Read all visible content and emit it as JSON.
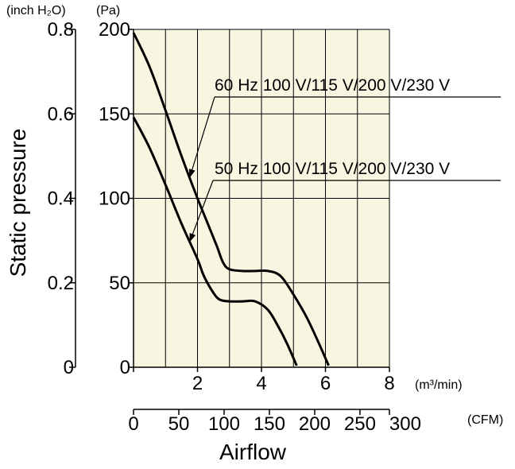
{
  "chart_data": {
    "type": "line",
    "xlabel": "Airflow",
    "ylabel": "Static pressure",
    "x_unit_primary": "(m³/min)",
    "x_unit_secondary": "(CFM)",
    "y_unit_left_outer": "(inch H₂O)",
    "y_unit_left_inner": "(Pa)",
    "xlim": [
      0,
      8
    ],
    "ylim": [
      0,
      200
    ],
    "x_ticks": [
      0,
      2,
      4,
      6,
      8
    ],
    "x_tick_labels": [
      "",
      "2",
      "4",
      "6",
      "8"
    ],
    "y_ticks": [
      0,
      50,
      100,
      150,
      200
    ],
    "y_tick_labels_pa": [
      "0",
      "50",
      "100",
      "150",
      "200"
    ],
    "y_tick_labels_inch": [
      "0",
      "0.2",
      "0.4",
      "0.6",
      "0.8"
    ],
    "cfm_tick_labels": [
      "0",
      "50",
      "100",
      "150",
      "200",
      "250",
      "300"
    ],
    "cfm_ticks": [
      0,
      50,
      100,
      150,
      200,
      250,
      300
    ],
    "grid": true,
    "background": "#f8f5e1",
    "series": [
      {
        "name": "60 Hz 100 V/115 V/200 V/230 V",
        "x": [
          0.0,
          0.5,
          1.0,
          1.5,
          2.0,
          2.3,
          2.6,
          2.8,
          3.0,
          3.4,
          3.8,
          4.2,
          4.6,
          5.0,
          5.4,
          5.8,
          6.1
        ],
        "y": [
          198,
          178,
          152,
          125,
          100,
          86,
          72,
          62,
          58,
          57,
          57,
          57,
          54,
          43,
          30,
          14,
          1
        ]
      },
      {
        "name": "50 Hz 100 V/115 V/200 V/230 V",
        "x": [
          0.0,
          0.5,
          1.0,
          1.5,
          2.0,
          2.2,
          2.5,
          2.7,
          3.0,
          3.4,
          3.8,
          4.2,
          4.5,
          4.8,
          5.1
        ],
        "y": [
          148,
          130,
          108,
          85,
          64,
          54,
          44,
          40,
          39,
          39,
          39,
          34,
          25,
          14,
          1
        ]
      }
    ],
    "annotations": [
      {
        "text": "60 Hz 100 V/115 V/200 V/230 V",
        "series": 0
      },
      {
        "text": "50 Hz 100 V/115 V/200 V/230 V",
        "series": 1
      }
    ]
  }
}
